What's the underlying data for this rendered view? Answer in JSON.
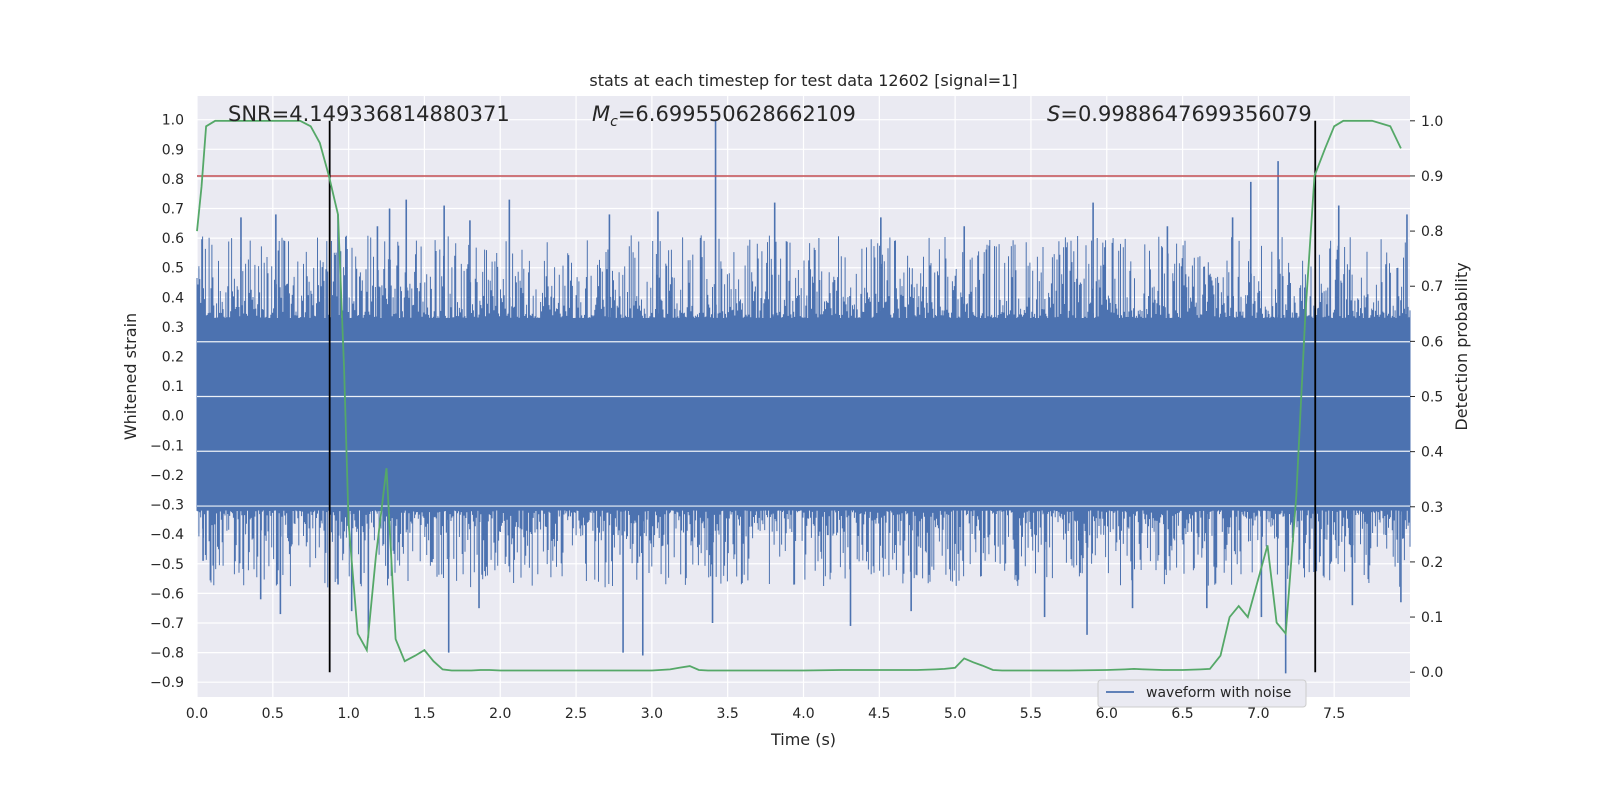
{
  "chart_data": {
    "type": "line",
    "title": "stats at each timestep for test data 12602 [signal=1]",
    "xlabel": "Time (s)",
    "ylabel": "Whitened strain",
    "ylabel_right": "Detection probability",
    "xlim": [
      0.0,
      8.0
    ],
    "ylim": [
      -0.95,
      1.08
    ],
    "ylim_right": [
      -0.045,
      1.045
    ],
    "x_ticks": [
      0.0,
      0.5,
      1.0,
      1.5,
      2.0,
      2.5,
      3.0,
      3.5,
      4.0,
      4.5,
      5.0,
      5.5,
      6.0,
      6.5,
      7.0,
      7.5
    ],
    "x_tick_labels": [
      "0.0",
      "0.5",
      "1.0",
      "1.5",
      "2.0",
      "2.5",
      "3.0",
      "3.5",
      "4.0",
      "4.5",
      "5.0",
      "5.5",
      "6.0",
      "6.5",
      "7.0",
      "7.5"
    ],
    "y_ticks": [
      -0.9,
      -0.8,
      -0.7,
      -0.6,
      -0.5,
      -0.4,
      -0.3,
      -0.2,
      -0.1,
      0.0,
      0.1,
      0.2,
      0.3,
      0.4,
      0.5,
      0.6,
      0.7,
      0.8,
      0.9,
      1.0
    ],
    "y_tick_labels": [
      "−0.9",
      "−0.8",
      "−0.7",
      "−0.6",
      "−0.5",
      "−0.4",
      "−0.3",
      "−0.2",
      "−0.1",
      "0.0",
      "0.1",
      "0.2",
      "0.3",
      "0.4",
      "0.5",
      "0.6",
      "0.7",
      "0.8",
      "0.9",
      "1.0"
    ],
    "y_right_ticks": [
      0.0,
      0.1,
      0.2,
      0.3,
      0.4,
      0.5,
      0.6,
      0.7,
      0.8,
      0.9,
      1.0
    ],
    "y_right_tick_labels": [
      "0.0",
      "0.1",
      "0.2",
      "0.3",
      "0.4",
      "0.5",
      "0.6",
      "0.7",
      "0.8",
      "0.9",
      "1.0"
    ],
    "grid": true,
    "annotations": {
      "snr": "SNR=4.149336814880371",
      "mc_symbol": "M",
      "mc_sub": "c",
      "mc_value": "=6.699550628662109",
      "s_symbol": "S",
      "s_value": "=0.9988647699356079"
    },
    "threshold_right": 0.9,
    "vertical_lines_x": [
      0.875,
      7.375
    ],
    "series": [
      {
        "name": "waveform with noise",
        "color": "#4c72b0",
        "axis": "left",
        "core_envelope": [
          -0.32,
          0.33
        ],
        "spikes": [
          [
            0.29,
            0.67
          ],
          [
            0.52,
            0.68
          ],
          [
            0.93,
            0.68
          ],
          [
            1.19,
            0.64
          ],
          [
            1.27,
            0.7
          ],
          [
            1.38,
            0.73
          ],
          [
            1.63,
            0.71
          ],
          [
            1.8,
            0.66
          ],
          [
            2.06,
            0.73
          ],
          [
            2.72,
            0.68
          ],
          [
            3.04,
            0.69
          ],
          [
            3.42,
            1.0
          ],
          [
            3.81,
            0.72
          ],
          [
            4.51,
            0.67
          ],
          [
            5.06,
            0.64
          ],
          [
            5.91,
            0.72
          ],
          [
            6.4,
            0.64
          ],
          [
            6.83,
            0.67
          ],
          [
            6.95,
            0.79
          ],
          [
            7.13,
            0.86
          ],
          [
            7.53,
            0.71
          ],
          [
            7.98,
            0.68
          ],
          [
            0.04,
            -0.49
          ],
          [
            0.42,
            -0.62
          ],
          [
            0.55,
            -0.67
          ],
          [
            0.93,
            -0.57
          ],
          [
            1.02,
            -0.66
          ],
          [
            1.13,
            -0.75
          ],
          [
            1.66,
            -0.8
          ],
          [
            1.86,
            -0.65
          ],
          [
            2.81,
            -0.8
          ],
          [
            2.94,
            -0.81
          ],
          [
            3.4,
            -0.7
          ],
          [
            4.31,
            -0.71
          ],
          [
            4.71,
            -0.66
          ],
          [
            5.59,
            -0.68
          ],
          [
            5.87,
            -0.74
          ],
          [
            6.17,
            -0.65
          ],
          [
            6.66,
            -0.65
          ],
          [
            7.02,
            -0.68
          ],
          [
            7.18,
            -0.87
          ],
          [
            7.62,
            -0.64
          ],
          [
            7.94,
            -0.63
          ]
        ]
      },
      {
        "name": "",
        "color": "#55a868",
        "axis": "right",
        "x": [
          0.0,
          0.03,
          0.06,
          0.12,
          0.18,
          0.25,
          0.31,
          0.37,
          0.44,
          0.5,
          0.56,
          0.62,
          0.68,
          0.75,
          0.81,
          0.87,
          0.93,
          0.97,
          1.0,
          1.06,
          1.12,
          1.18,
          1.25,
          1.31,
          1.37,
          1.44,
          1.5,
          1.56,
          1.62,
          1.68,
          1.75,
          1.81,
          1.87,
          1.93,
          2.0,
          2.12,
          2.25,
          2.5,
          2.75,
          3.0,
          3.12,
          3.18,
          3.25,
          3.31,
          3.37,
          3.5,
          3.75,
          4.0,
          4.25,
          4.5,
          4.75,
          4.87,
          4.93,
          5.0,
          5.06,
          5.12,
          5.18,
          5.25,
          5.31,
          5.5,
          5.75,
          6.0,
          6.12,
          6.18,
          6.25,
          6.37,
          6.5,
          6.62,
          6.68,
          6.75,
          6.81,
          6.87,
          6.93,
          7.0,
          7.06,
          7.12,
          7.18,
          7.25,
          7.31,
          7.37,
          7.44,
          7.5,
          7.56,
          7.62,
          7.75,
          7.87,
          7.94
        ],
        "values": [
          0.8,
          0.88,
          0.99,
          1.0,
          1.0,
          1.0,
          1.0,
          1.0,
          1.0,
          1.0,
          1.0,
          1.0,
          1.0,
          0.99,
          0.96,
          0.9,
          0.83,
          0.55,
          0.27,
          0.07,
          0.04,
          0.21,
          0.37,
          0.06,
          0.02,
          0.03,
          0.04,
          0.02,
          0.005,
          0.003,
          0.003,
          0.003,
          0.004,
          0.004,
          0.003,
          0.003,
          0.003,
          0.003,
          0.003,
          0.003,
          0.005,
          0.008,
          0.011,
          0.004,
          0.003,
          0.003,
          0.003,
          0.003,
          0.004,
          0.004,
          0.004,
          0.005,
          0.006,
          0.008,
          0.025,
          0.018,
          0.012,
          0.004,
          0.003,
          0.003,
          0.003,
          0.004,
          0.005,
          0.006,
          0.005,
          0.004,
          0.004,
          0.005,
          0.006,
          0.03,
          0.1,
          0.12,
          0.1,
          0.17,
          0.23,
          0.09,
          0.07,
          0.32,
          0.65,
          0.9,
          0.95,
          0.99,
          1.0,
          1.0,
          1.0,
          0.99,
          0.95
        ]
      }
    ],
    "legend": {
      "placement": "bottom-right",
      "entries": [
        {
          "label": "waveform with noise",
          "color": "#4c72b0"
        }
      ]
    }
  }
}
